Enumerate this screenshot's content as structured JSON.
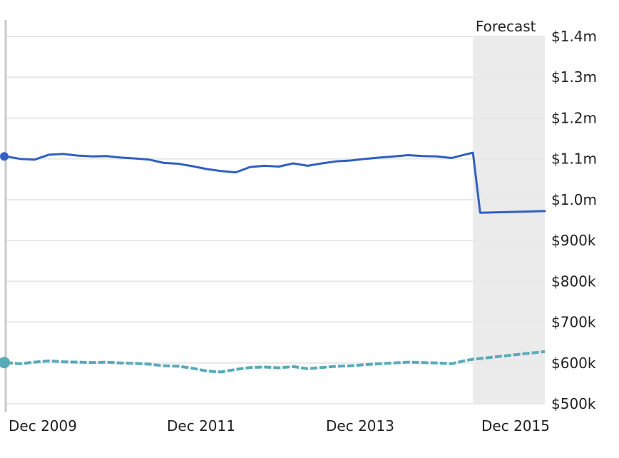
{
  "chart_data": {
    "type": "line",
    "title": "",
    "xlabel": "",
    "ylabel": "",
    "forecast_label": "Forecast",
    "x_tick_labels": [
      "Dec 2009",
      "Dec 2011",
      "Dec 2013",
      "Dec 2015"
    ],
    "y_tick_labels": [
      "$1.4m",
      "$1.3m",
      "$1.2m",
      "$1.1m",
      "$1.0m",
      "$900k",
      "$800k",
      "$700k",
      "$600k",
      "$500k"
    ],
    "y_ticks": [
      1400000,
      1300000,
      1200000,
      1100000,
      1000000,
      900000,
      800000,
      700000,
      600000,
      500000
    ],
    "ylim": [
      500000,
      1400000
    ],
    "x_start": "2009-08",
    "x_end": "2015-11",
    "forecast_start": "2015-01",
    "grid": true,
    "colors": {
      "series_1": "#3060c0",
      "series_2": "#5aaab8",
      "forecast_band": "#ebebeb",
      "grid": "#e8e8e8",
      "cursor": "#c8c8c8"
    },
    "series": [
      {
        "style": "solid",
        "x": [
          "2009-08",
          "2009-10",
          "2009-12",
          "2010-02",
          "2010-04",
          "2010-06",
          "2010-08",
          "2010-10",
          "2010-12",
          "2011-02",
          "2011-04",
          "2011-06",
          "2011-08",
          "2011-10",
          "2011-12",
          "2012-02",
          "2012-04",
          "2012-06",
          "2012-08",
          "2012-10",
          "2012-12",
          "2013-02",
          "2013-04",
          "2013-06",
          "2013-08",
          "2013-10",
          "2013-12",
          "2014-02",
          "2014-04",
          "2014-06",
          "2014-08",
          "2014-10",
          "2014-12",
          "2015-01",
          "2015-02",
          "2015-11"
        ],
        "values": [
          1106000,
          1100000,
          1098000,
          1110000,
          1112000,
          1108000,
          1106000,
          1107000,
          1103000,
          1101000,
          1098000,
          1090000,
          1088000,
          1082000,
          1075000,
          1070000,
          1067000,
          1080000,
          1083000,
          1081000,
          1089000,
          1083000,
          1089000,
          1094000,
          1096000,
          1100000,
          1103000,
          1106000,
          1109000,
          1107000,
          1106000,
          1102000,
          1111000,
          1115000,
          968000,
          972000
        ]
      },
      {
        "style": "dashed",
        "x": [
          "2009-08",
          "2009-10",
          "2009-12",
          "2010-02",
          "2010-04",
          "2010-06",
          "2010-08",
          "2010-10",
          "2010-12",
          "2011-02",
          "2011-04",
          "2011-06",
          "2011-08",
          "2011-10",
          "2011-12",
          "2012-02",
          "2012-04",
          "2012-06",
          "2012-08",
          "2012-10",
          "2012-12",
          "2013-02",
          "2013-04",
          "2013-06",
          "2013-08",
          "2013-10",
          "2013-12",
          "2014-02",
          "2014-04",
          "2014-06",
          "2014-08",
          "2014-10",
          "2014-12",
          "2015-01",
          "2015-11"
        ],
        "values": [
          601000,
          598000,
          602000,
          605000,
          603000,
          602000,
          601000,
          602000,
          600000,
          599000,
          597000,
          593000,
          592000,
          587000,
          580000,
          578000,
          584000,
          589000,
          590000,
          588000,
          591000,
          586000,
          589000,
          592000,
          593000,
          596000,
          598000,
          600000,
          602000,
          601000,
          600000,
          598000,
          606000,
          609000,
          628000
        ]
      }
    ]
  }
}
